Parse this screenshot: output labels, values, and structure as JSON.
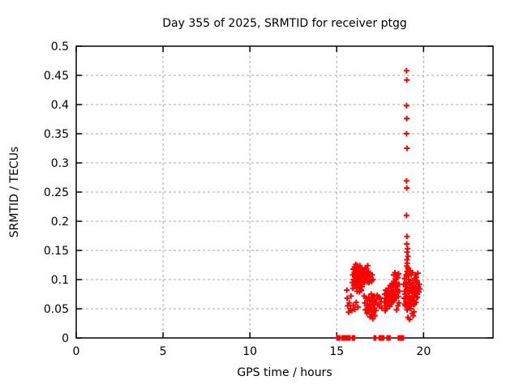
{
  "colors": {
    "marker": "#ff0000",
    "grid": "#a8a8a8",
    "frame": "#000000",
    "background": "#ffffff",
    "text": "#000000"
  },
  "chart_data": {
    "type": "scatter",
    "title": "Day 355 of 2025, SRMTID for receiver ptgg",
    "xlabel": "GPS time / hours",
    "ylabel": "SRMTID / TECUs",
    "xlim": [
      0,
      24
    ],
    "ylim": [
      0,
      0.5
    ],
    "grid": true,
    "legend": "none",
    "marker": {
      "shape": "plus",
      "color": "#ff0000",
      "size": 7
    },
    "x_ticks": {
      "values": [
        0,
        5,
        10,
        15,
        20
      ],
      "labels": [
        "0",
        "5",
        "10",
        "15",
        "20"
      ]
    },
    "y_ticks": {
      "values": [
        0,
        0.05,
        0.1,
        0.15,
        0.2,
        0.25,
        0.3,
        0.35,
        0.4,
        0.45,
        0.5
      ],
      "labels": [
        "0",
        "0.05",
        "0.1",
        "0.15",
        "0.2",
        "0.25",
        "0.3",
        "0.35",
        "0.4",
        "0.45",
        "0.5"
      ]
    },
    "series": [
      {
        "name": "SRMTID",
        "points": [
          [
            15.02,
            0
          ],
          [
            15.06,
            0
          ],
          [
            15.1,
            0
          ],
          [
            15.14,
            0
          ],
          [
            15.18,
            0
          ],
          [
            15.31,
            0
          ],
          [
            15.35,
            0
          ],
          [
            15.39,
            0
          ],
          [
            15.43,
            0
          ],
          [
            15.47,
            0
          ],
          [
            15.51,
            0
          ],
          [
            15.55,
            0
          ],
          [
            15.59,
            0
          ],
          [
            15.63,
            0
          ],
          [
            15.72,
            0
          ],
          [
            15.76,
            0
          ],
          [
            15.9,
            0
          ],
          [
            15.94,
            0
          ],
          [
            15.98,
            0
          ],
          [
            16.02,
            0
          ],
          [
            17.16,
            0
          ],
          [
            17.2,
            0
          ],
          [
            17.24,
            0
          ],
          [
            17.45,
            0
          ],
          [
            17.49,
            0
          ],
          [
            17.53,
            0
          ],
          [
            17.57,
            0
          ],
          [
            17.66,
            0
          ],
          [
            17.7,
            0
          ],
          [
            17.9,
            0
          ],
          [
            17.94,
            0
          ],
          [
            17.98,
            0
          ],
          [
            18.02,
            0
          ],
          [
            18.06,
            0
          ],
          [
            18.55,
            0
          ],
          [
            18.59,
            0
          ],
          [
            18.63,
            0
          ],
          [
            18.67,
            0
          ],
          [
            18.71,
            0
          ],
          [
            18.75,
            0
          ],
          [
            18.79,
            0
          ],
          [
            18.83,
            0
          ],
          [
            15.58,
            0.082
          ],
          [
            15.6,
            0.068
          ],
          [
            15.63,
            0.055
          ],
          [
            15.68,
            0.044
          ],
          [
            15.72,
            0.06
          ],
          [
            15.78,
            0.05
          ],
          [
            15.82,
            0.072
          ],
          [
            15.86,
            0.047
          ],
          [
            15.95,
            0.056
          ],
          [
            16.04,
            0.049
          ],
          [
            16.12,
            0.061
          ],
          [
            16.22,
            0.053
          ],
          [
            15.9,
            0.095
          ],
          [
            15.92,
            0.108
          ],
          [
            15.93,
            0.085
          ],
          [
            15.95,
            0.118
          ],
          [
            15.97,
            0.1
          ],
          [
            15.98,
            0.09
          ],
          [
            16.0,
            0.112
          ],
          [
            16.01,
            0.097
          ],
          [
            16.02,
            0.122
          ],
          [
            16.04,
            0.105
          ],
          [
            16.05,
            0.088
          ],
          [
            16.06,
            0.115
          ],
          [
            16.08,
            0.098
          ],
          [
            16.09,
            0.126
          ],
          [
            16.1,
            0.11
          ],
          [
            16.11,
            0.092
          ],
          [
            16.12,
            0.119
          ],
          [
            16.14,
            0.103
          ],
          [
            16.15,
            0.087
          ],
          [
            16.16,
            0.113
          ],
          [
            16.18,
            0.124
          ],
          [
            16.19,
            0.099
          ],
          [
            16.2,
            0.108
          ],
          [
            16.21,
            0.09
          ],
          [
            16.22,
            0.117
          ],
          [
            16.24,
            0.102
          ],
          [
            16.25,
            0.121
          ],
          [
            16.26,
            0.094
          ],
          [
            16.28,
            0.11
          ],
          [
            16.29,
            0.085
          ],
          [
            16.3,
            0.118
          ],
          [
            16.32,
            0.1
          ],
          [
            16.33,
            0.124
          ],
          [
            16.35,
            0.108
          ],
          [
            16.36,
            0.091
          ],
          [
            16.38,
            0.114
          ],
          [
            16.4,
            0.097
          ],
          [
            16.41,
            0.12
          ],
          [
            16.43,
            0.104
          ],
          [
            16.45,
            0.112
          ],
          [
            16.46,
            0.088
          ],
          [
            16.48,
            0.106
          ],
          [
            16.5,
            0.117
          ],
          [
            16.52,
            0.095
          ],
          [
            16.54,
            0.109
          ],
          [
            16.42,
            0.082
          ],
          [
            16.31,
            0.079
          ],
          [
            16.17,
            0.08
          ],
          [
            16.56,
            0.102
          ],
          [
            16.58,
            0.115
          ],
          [
            16.6,
            0.095
          ],
          [
            16.62,
            0.108
          ],
          [
            16.64,
            0.12
          ],
          [
            16.66,
            0.099
          ],
          [
            16.68,
            0.112
          ],
          [
            16.7,
            0.104
          ],
          [
            16.72,
            0.118
          ],
          [
            16.74,
            0.096
          ],
          [
            16.76,
            0.11
          ],
          [
            16.78,
            0.124
          ],
          [
            16.8,
            0.101
          ],
          [
            16.82,
            0.113
          ],
          [
            16.85,
            0.095
          ],
          [
            16.88,
            0.107
          ],
          [
            16.9,
            0.099
          ],
          [
            16.93,
            0.111
          ],
          [
            16.96,
            0.104
          ],
          [
            17.0,
            0.097
          ],
          [
            17.04,
            0.108
          ],
          [
            17.08,
            0.1
          ],
          [
            16.58,
            0.072
          ],
          [
            16.62,
            0.06
          ],
          [
            16.65,
            0.048
          ],
          [
            16.68,
            0.068
          ],
          [
            16.72,
            0.055
          ],
          [
            16.75,
            0.042
          ],
          [
            16.78,
            0.064
          ],
          [
            16.82,
            0.05
          ],
          [
            16.85,
            0.07
          ],
          [
            16.88,
            0.045
          ],
          [
            16.9,
            0.058
          ],
          [
            16.92,
            0.036
          ],
          [
            16.95,
            0.066
          ],
          [
            16.98,
            0.052
          ],
          [
            17.0,
            0.04
          ],
          [
            17.02,
            0.062
          ],
          [
            17.05,
            0.048
          ],
          [
            17.08,
            0.033
          ],
          [
            17.1,
            0.057
          ],
          [
            17.12,
            0.044
          ],
          [
            17.15,
            0.065
          ],
          [
            17.18,
            0.051
          ],
          [
            17.2,
            0.038
          ],
          [
            17.22,
            0.06
          ],
          [
            17.25,
            0.047
          ],
          [
            16.98,
            0.075
          ],
          [
            17.16,
            0.072
          ],
          [
            17.06,
            0.07
          ],
          [
            17.3,
            0.066
          ],
          [
            17.33,
            0.073
          ],
          [
            17.36,
            0.057
          ],
          [
            17.42,
            0.07
          ],
          [
            17.46,
            0.055
          ],
          [
            17.5,
            0.068
          ],
          [
            17.55,
            0.062
          ],
          [
            17.6,
            0.051
          ],
          [
            17.74,
            0.062
          ],
          [
            17.76,
            0.075
          ],
          [
            17.78,
            0.055
          ],
          [
            17.8,
            0.068
          ],
          [
            17.82,
            0.082
          ],
          [
            17.84,
            0.06
          ],
          [
            17.86,
            0.073
          ],
          [
            17.88,
            0.05
          ],
          [
            17.9,
            0.065
          ],
          [
            17.92,
            0.079
          ],
          [
            17.94,
            0.057
          ],
          [
            17.96,
            0.07
          ],
          [
            17.98,
            0.085
          ],
          [
            18.0,
            0.063
          ],
          [
            18.02,
            0.076
          ],
          [
            18.04,
            0.054
          ],
          [
            18.06,
            0.068
          ],
          [
            18.08,
            0.09
          ],
          [
            18.1,
            0.072
          ],
          [
            18.12,
            0.058
          ],
          [
            18.14,
            0.081
          ],
          [
            18.16,
            0.066
          ],
          [
            18.18,
            0.093
          ],
          [
            18.2,
            0.075
          ],
          [
            18.22,
            0.061
          ],
          [
            18.24,
            0.087
          ],
          [
            18.26,
            0.07
          ],
          [
            18.28,
            0.097
          ],
          [
            18.3,
            0.079
          ],
          [
            18.32,
            0.064
          ],
          [
            18.34,
            0.091
          ],
          [
            18.36,
            0.074
          ],
          [
            18.38,
            0.101
          ],
          [
            18.4,
            0.083
          ],
          [
            18.42,
            0.068
          ],
          [
            18.44,
            0.095
          ],
          [
            18.46,
            0.107
          ],
          [
            18.48,
            0.078
          ],
          [
            18.5,
            0.088
          ],
          [
            18.52,
            0.103
          ],
          [
            18.54,
            0.071
          ],
          [
            18.56,
            0.11
          ],
          [
            18.58,
            0.092
          ],
          [
            18.6,
            0.08
          ],
          [
            18.45,
            0.048
          ],
          [
            18.52,
            0.055
          ],
          [
            18.58,
            0.06
          ],
          [
            17.79,
            0.047
          ],
          [
            18.35,
            0.112
          ],
          [
            18.28,
            0.108
          ],
          [
            19.02,
            0.458
          ],
          [
            19.03,
            0.442
          ],
          [
            19.02,
            0.398
          ],
          [
            19.03,
            0.376
          ],
          [
            19.02,
            0.35
          ],
          [
            19.04,
            0.325
          ],
          [
            19.02,
            0.269
          ],
          [
            19.03,
            0.257
          ],
          [
            19.02,
            0.21
          ],
          [
            19.04,
            0.174
          ],
          [
            19.03,
            0.161
          ],
          [
            19.08,
            0.153
          ],
          [
            19.05,
            0.147
          ],
          [
            19.1,
            0.14
          ],
          [
            19.04,
            0.134
          ],
          [
            19.06,
            0.128
          ],
          [
            19.03,
            0.123
          ],
          [
            19.12,
            0.118
          ],
          [
            19.05,
            0.114
          ],
          [
            19.08,
            0.11
          ],
          [
            19.03,
            0.106
          ],
          [
            18.86,
            0.092
          ],
          [
            18.88,
            0.068
          ],
          [
            18.9,
            0.08
          ],
          [
            18.9,
            0.102
          ],
          [
            18.92,
            0.058
          ],
          [
            18.94,
            0.075
          ],
          [
            18.96,
            0.088
          ],
          [
            18.98,
            0.062
          ],
          [
            19.0,
            0.095
          ],
          [
            19.02,
            0.07
          ],
          [
            19.04,
            0.082
          ],
          [
            19.06,
            0.058
          ],
          [
            19.08,
            0.092
          ],
          [
            19.1,
            0.066
          ],
          [
            19.12,
            0.079
          ],
          [
            19.14,
            0.1
          ],
          [
            19.16,
            0.072
          ],
          [
            19.18,
            0.086
          ],
          [
            19.2,
            0.06
          ],
          [
            19.22,
            0.094
          ],
          [
            19.24,
            0.068
          ],
          [
            19.26,
            0.081
          ],
          [
            19.28,
            0.055
          ],
          [
            19.3,
            0.09
          ],
          [
            19.32,
            0.063
          ],
          [
            19.34,
            0.077
          ],
          [
            19.36,
            0.098
          ],
          [
            19.38,
            0.07
          ],
          [
            19.4,
            0.084
          ],
          [
            19.42,
            0.057
          ],
          [
            19.44,
            0.091
          ],
          [
            19.46,
            0.065
          ],
          [
            19.48,
            0.078
          ],
          [
            19.5,
            0.102
          ],
          [
            19.52,
            0.073
          ],
          [
            19.54,
            0.087
          ],
          [
            19.56,
            0.061
          ],
          [
            19.58,
            0.095
          ],
          [
            19.6,
            0.069
          ],
          [
            19.62,
            0.082
          ],
          [
            19.64,
            0.075
          ],
          [
            19.67,
            0.111
          ],
          [
            19.7,
            0.088
          ],
          [
            19.72,
            0.079
          ],
          [
            19.75,
            0.092
          ],
          [
            19.78,
            0.084
          ],
          [
            19.35,
            0.042
          ],
          [
            19.4,
            0.038
          ],
          [
            19.45,
            0.045
          ],
          [
            19.1,
            0.035
          ],
          [
            19.2,
            0.032
          ],
          [
            19.28,
            0.108
          ],
          [
            19.2,
            0.115
          ],
          [
            19.1,
            0.12
          ],
          [
            19.15,
            0.052
          ],
          [
            19.05,
            0.048
          ],
          [
            18.95,
            0.055
          ],
          [
            19.0,
            0.108
          ],
          [
            19.25,
            0.05
          ],
          [
            19.55,
            0.078
          ],
          [
            19.65,
            0.07
          ],
          [
            19.48,
            0.058
          ],
          [
            19.33,
            0.085
          ],
          [
            19.58,
            0.104
          ],
          [
            19.62,
            0.098
          ],
          [
            19.37,
            0.112
          ],
          [
            19.52,
            0.108
          ]
        ]
      }
    ]
  }
}
